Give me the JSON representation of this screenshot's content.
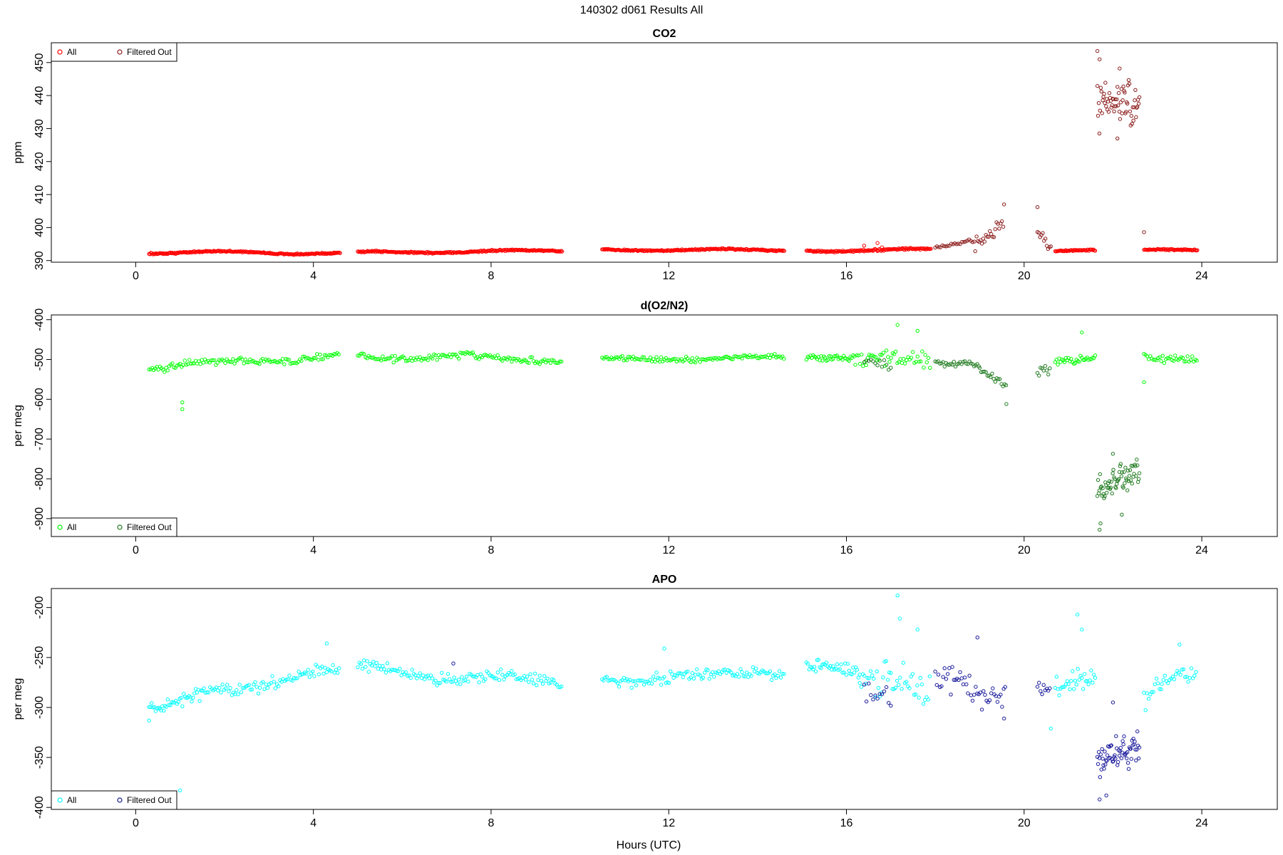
{
  "figure": {
    "title": "140302   d061   Results All",
    "xlabel": "Hours (UTC)"
  },
  "chart_data": [
    {
      "type": "scatter",
      "title": "CO2",
      "xlabel": "",
      "ylabel": "ppm",
      "xlim": [
        -1.9,
        25.7
      ],
      "ylim": [
        389.5,
        456
      ],
      "xticks": [
        0,
        4,
        8,
        12,
        16,
        20,
        24
      ],
      "yticks": [
        390,
        400,
        410,
        420,
        430,
        440,
        450
      ],
      "grid": false,
      "legend": {
        "placement": "top-left",
        "entries": [
          "All",
          "Filtered Out"
        ]
      },
      "colors": {
        "all": "#ff0000",
        "filtered": "#8b1a1a"
      },
      "series": [
        {
          "name": "All",
          "segments": [
            {
              "x": [
                0.3,
                4.6
              ],
              "y": [
                392.5,
                392.3
              ],
              "wave": 0.4,
              "noise": 0.2,
              "step": 0.02
            },
            {
              "x": [
                5.0,
                9.6
              ],
              "y": [
                392.4,
                393.0
              ],
              "wave": 0.3,
              "noise": 0.2,
              "step": 0.02
            },
            {
              "x": [
                10.5,
                14.6
              ],
              "y": [
                393.3,
                393.2
              ],
              "wave": 0.3,
              "noise": 0.2,
              "step": 0.02
            },
            {
              "x": [
                15.1,
                17.9
              ],
              "y": [
                393.0,
                393.3
              ],
              "wave": 0.3,
              "noise": 0.25,
              "step": 0.02
            },
            {
              "x": [
                20.7,
                21.6
              ],
              "y": [
                393.0,
                393.0
              ],
              "wave": 0.2,
              "noise": 0.2,
              "step": 0.02
            },
            {
              "x": [
                22.7,
                23.9
              ],
              "y": [
                393.2,
                393.1
              ],
              "wave": 0.2,
              "noise": 0.2,
              "step": 0.02
            }
          ],
          "points": [
            [
              16.4,
              394.5
            ],
            [
              16.7,
              395.3
            ],
            [
              16.8,
              394.0
            ]
          ]
        },
        {
          "name": "Filtered Out",
          "segments": [
            {
              "x": [
                18.0,
                18.9
              ],
              "y": [
                393.2,
                396.0
              ],
              "wave": 0.6,
              "noise": 0.6,
              "step": 0.04
            },
            {
              "x": [
                18.9,
                19.55
              ],
              "y": [
                396.0,
                401.0
              ],
              "wave": 1.5,
              "noise": 2.2,
              "step": 0.03
            },
            {
              "x": [
                20.3,
                20.6
              ],
              "y": [
                400.0,
                394.5
              ],
              "wave": 1.0,
              "noise": 1.5,
              "step": 0.03
            },
            {
              "x": [
                21.65,
                22.6
              ],
              "y": [
                437.5,
                436.0
              ],
              "wave": 2.0,
              "noise": 6.0,
              "step": 0.015
            }
          ],
          "points": [
            [
              19.55,
              407.0
            ],
            [
              20.3,
              406.2
            ],
            [
              21.65,
              453.5
            ],
            [
              21.7,
              451.0
            ],
            [
              22.15,
              448.2
            ],
            [
              22.1,
              427.0
            ],
            [
              22.7,
              398.6
            ]
          ]
        }
      ]
    },
    {
      "type": "scatter",
      "title": "d(O2/N2)",
      "xlabel": "",
      "ylabel": "per meg",
      "xlim": [
        -1.9,
        25.7
      ],
      "ylim": [
        -945,
        -388
      ],
      "xticks": [
        0,
        4,
        8,
        12,
        16,
        20,
        24
      ],
      "yticks": [
        -400,
        -500,
        -600,
        -700,
        -800,
        -900
      ],
      "grid": false,
      "legend": {
        "placement": "bottom-left",
        "entries": [
          "All",
          "Filtered Out"
        ]
      },
      "colors": {
        "all": "#00ff00",
        "filtered": "#1e7a1e"
      },
      "series": [
        {
          "name": "All",
          "segments": [
            {
              "x": [
                0.3,
                4.6
              ],
              "y": [
                -520,
                -490
              ],
              "wave": 6,
              "noise": 7,
              "step": 0.035
            },
            {
              "x": [
                5.0,
                9.6
              ],
              "y": [
                -490,
                -500
              ],
              "wave": 7,
              "noise": 7,
              "step": 0.035
            },
            {
              "x": [
                10.5,
                14.6
              ],
              "y": [
                -500,
                -495
              ],
              "wave": 4,
              "noise": 6,
              "step": 0.035
            },
            {
              "x": [
                15.1,
                16.2
              ],
              "y": [
                -490,
                -490
              ],
              "wave": 6,
              "noise": 8,
              "step": 0.03
            },
            {
              "x": [
                16.2,
                17.9
              ],
              "y": [
                -500,
                -505
              ],
              "wave": 10,
              "noise": 18,
              "step": 0.035
            },
            {
              "x": [
                20.7,
                21.6
              ],
              "y": [
                -500,
                -490
              ],
              "wave": 6,
              "noise": 8,
              "step": 0.03
            },
            {
              "x": [
                22.7,
                23.9
              ],
              "y": [
                -500,
                -495
              ],
              "wave": 6,
              "noise": 9,
              "step": 0.035
            }
          ],
          "points": [
            [
              1.05,
              -608
            ],
            [
              1.05,
              -625
            ],
            [
              17.15,
              -413
            ],
            [
              17.6,
              -428
            ],
            [
              21.3,
              -432
            ],
            [
              22.7,
              -557
            ]
          ]
        },
        {
          "name": "Filtered Out",
          "segments": [
            {
              "x": [
                16.4,
                17.0
              ],
              "y": [
                -510,
                -515
              ],
              "wave": 8,
              "noise": 10,
              "step": 0.05
            },
            {
              "x": [
                18.0,
                19.0
              ],
              "y": [
                -500,
                -510
              ],
              "wave": 6,
              "noise": 8,
              "step": 0.035
            },
            {
              "x": [
                19.0,
                19.6
              ],
              "y": [
                -520,
                -560
              ],
              "wave": 8,
              "noise": 15,
              "step": 0.035
            },
            {
              "x": [
                20.3,
                20.6
              ],
              "y": [
                -540,
                -510
              ],
              "wave": 6,
              "noise": 12,
              "step": 0.035
            },
            {
              "x": [
                21.65,
                22.6
              ],
              "y": [
                -830,
                -790
              ],
              "wave": 12,
              "noise": 28,
              "step": 0.015
            }
          ],
          "points": [
            [
              19.6,
              -612
            ],
            [
              21.7,
              -928
            ],
            [
              21.72,
              -912
            ],
            [
              22.2,
              -890
            ],
            [
              22.0,
              -737
            ]
          ]
        }
      ]
    },
    {
      "type": "scatter",
      "title": "APO",
      "xlabel": "Hours (UTC)",
      "ylabel": "per meg",
      "xlim": [
        -1.9,
        25.7
      ],
      "ylim": [
        -402,
        -181
      ],
      "xticks": [
        0,
        4,
        8,
        12,
        16,
        20,
        24
      ],
      "yticks": [
        -200,
        -250,
        -300,
        -350,
        -400
      ],
      "grid": false,
      "legend": {
        "placement": "bottom-left",
        "entries": [
          "All",
          "Filtered Out"
        ]
      },
      "colors": {
        "all": "#00ffff",
        "filtered": "#1a1a9c"
      },
      "series": [
        {
          "name": "All",
          "segments": [
            {
              "x": [
                0.3,
                1.5
              ],
              "y": [
                -300,
                -285
              ],
              "wave": 3,
              "noise": 5,
              "step": 0.03
            },
            {
              "x": [
                1.5,
                4.6
              ],
              "y": [
                -285,
                -262
              ],
              "wave": 3,
              "noise": 5,
              "step": 0.035
            },
            {
              "x": [
                5.0,
                9.6
              ],
              "y": [
                -262,
                -275
              ],
              "wave": 4,
              "noise": 5,
              "step": 0.035
            },
            {
              "x": [
                10.5,
                14.6
              ],
              "y": [
                -272,
                -265
              ],
              "wave": 3,
              "noise": 5,
              "step": 0.035
            },
            {
              "x": [
                15.1,
                16.3
              ],
              "y": [
                -262,
                -265
              ],
              "wave": 4,
              "noise": 6,
              "step": 0.03
            },
            {
              "x": [
                16.3,
                17.9
              ],
              "y": [
                -275,
                -280
              ],
              "wave": 5,
              "noise": 16,
              "step": 0.035
            },
            {
              "x": [
                20.7,
                21.6
              ],
              "y": [
                -275,
                -270
              ],
              "wave": 4,
              "noise": 9,
              "step": 0.03
            },
            {
              "x": [
                22.7,
                23.1
              ],
              "y": [
                -295,
                -280
              ],
              "wave": 3,
              "noise": 8,
              "step": 0.035
            },
            {
              "x": [
                23.1,
                23.9
              ],
              "y": [
                -270,
                -265
              ],
              "wave": 3,
              "noise": 6,
              "step": 0.035
            }
          ],
          "points": [
            [
              0.3,
              -313
            ],
            [
              1.0,
              -383
            ],
            [
              4.3,
              -236
            ],
            [
              11.9,
              -241
            ],
            [
              17.15,
              -188
            ],
            [
              17.2,
              -211
            ],
            [
              17.6,
              -222
            ],
            [
              21.2,
              -207
            ],
            [
              21.3,
              -222
            ],
            [
              20.6,
              -321
            ],
            [
              23.5,
              -237
            ]
          ]
        },
        {
          "name": "Filtered Out",
          "segments": [
            {
              "x": [
                16.4,
                17.0
              ],
              "y": [
                -280,
                -285
              ],
              "wave": 6,
              "noise": 10,
              "step": 0.05
            },
            {
              "x": [
                18.0,
                19.6
              ],
              "y": [
                -270,
                -285
              ],
              "wave": 6,
              "noise": 14,
              "step": 0.035
            },
            {
              "x": [
                20.3,
                20.6
              ],
              "y": [
                -278,
                -278
              ],
              "wave": 3,
              "noise": 5,
              "step": 0.035
            },
            {
              "x": [
                21.65,
                22.6
              ],
              "y": [
                -360,
                -340
              ],
              "wave": 6,
              "noise": 16,
              "step": 0.015
            }
          ],
          "points": [
            [
              7.15,
              -256
            ],
            [
              18.95,
              -230
            ],
            [
              19.55,
              -311
            ],
            [
              21.7,
              -392
            ],
            [
              21.85,
              -388
            ],
            [
              22.0,
              -295
            ]
          ]
        }
      ]
    }
  ]
}
